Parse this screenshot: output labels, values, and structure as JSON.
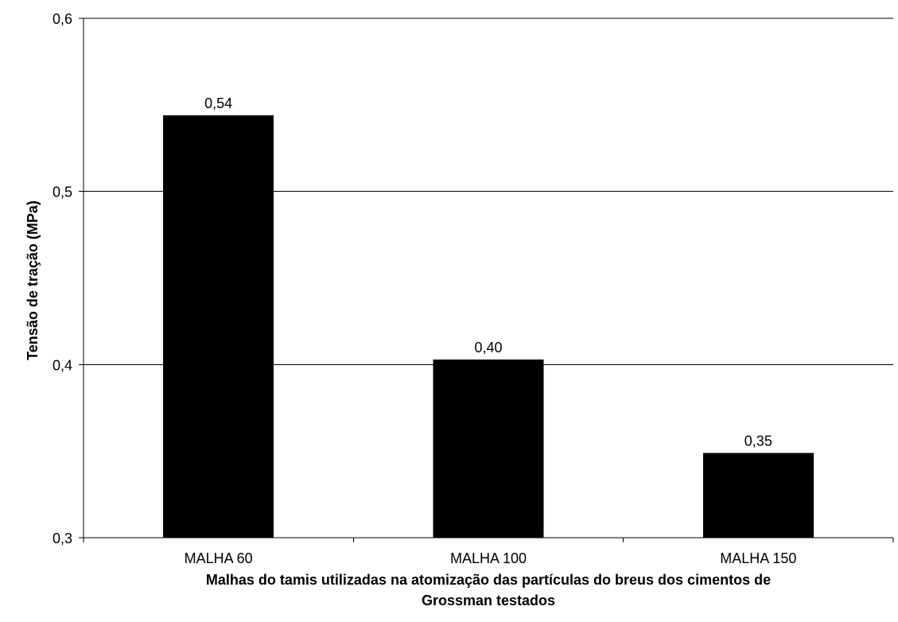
{
  "chart_data": {
    "type": "bar",
    "title": "",
    "categories": [
      "MALHA 60",
      "MALHA 100",
      "MALHA 150"
    ],
    "values": [
      0.544,
      0.403,
      0.349
    ],
    "value_labels": [
      "0,54",
      "0,40",
      "0,35"
    ],
    "xlabel": "Malhas do tamis utilizadas na atomização das partículas do breus dos cimentos de Grossman testados",
    "xlabel_lines": [
      "Malhas do tamis utilizadas na atomização das partículas do breus dos cimentos de",
      "Grossman testados"
    ],
    "ylabel": "Tensão de tração (MPa)",
    "ylim": [
      0.3,
      0.6
    ],
    "yticks": [
      0.3,
      0.4,
      0.5,
      0.6
    ],
    "ytick_labels": [
      "0,3",
      "0,4",
      "0,5",
      "0,6"
    ],
    "grid": true,
    "legend": "none",
    "colors": {
      "bar": "#000000",
      "grid": "#000000",
      "background": "#ffffff"
    }
  }
}
